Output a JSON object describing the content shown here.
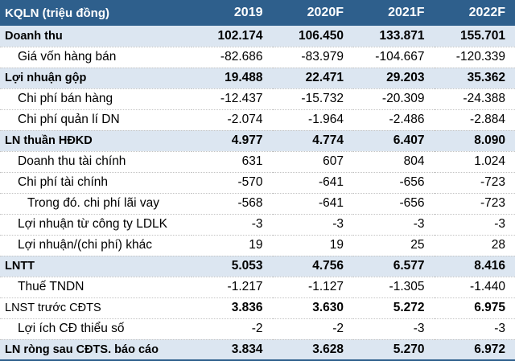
{
  "table": {
    "header": {
      "label": "KQLN (triệu đồng)",
      "years": [
        "2019",
        "2020F",
        "2021F",
        "2022F"
      ]
    },
    "rows": [
      {
        "label": "Doanh thu",
        "values": [
          "102.174",
          "106.450",
          "133.871",
          "155.701"
        ]
      },
      {
        "label": "Giá vốn hàng bán",
        "values": [
          "-82.686",
          "-83.979",
          "-104.667",
          "-120.339"
        ]
      },
      {
        "label": "Lợi nhuận gộp",
        "values": [
          "19.488",
          "22.471",
          "29.203",
          "35.362"
        ]
      },
      {
        "label": "Chi phí bán hàng",
        "values": [
          "-12.437",
          "-15.732",
          "-20.309",
          "-24.388"
        ]
      },
      {
        "label": "Chi phí quản lí DN",
        "values": [
          "-2.074",
          "-1.964",
          "-2.486",
          "-2.884"
        ]
      },
      {
        "label": "LN thuần HĐKD",
        "values": [
          "4.977",
          "4.774",
          "6.407",
          "8.090"
        ]
      },
      {
        "label": "Doanh thu tài chính",
        "values": [
          "631",
          "607",
          "804",
          "1.024"
        ]
      },
      {
        "label": "Chi phí tài chính",
        "values": [
          "-570",
          "-641",
          "-656",
          "-723"
        ]
      },
      {
        "label": "Trong đó. chi phí lãi vay",
        "values": [
          "-568",
          "-641",
          "-656",
          "-723"
        ]
      },
      {
        "label": "Lợi nhuận từ công ty LDLK",
        "values": [
          "-3",
          "-3",
          "-3",
          "-3"
        ]
      },
      {
        "label": "Lợi nhuận/(chi phí) khác",
        "values": [
          "19",
          "19",
          "25",
          "28"
        ]
      },
      {
        "label": "LNTT",
        "values": [
          "5.053",
          "4.756",
          "6.577",
          "8.416"
        ]
      },
      {
        "label": "Thuế TNDN",
        "values": [
          "-1.217",
          "-1.127",
          "-1.305",
          "-1.440"
        ]
      },
      {
        "label": "LNST trước CĐTS",
        "values": [
          "3.836",
          "3.630",
          "5.272",
          "6.975"
        ]
      },
      {
        "label": "Lợi ích CĐ thiểu số",
        "values": [
          "-2",
          "-2",
          "-3",
          "-3"
        ]
      },
      {
        "label": "LN ròng sau CĐTS. báo cáo",
        "values": [
          "3.834",
          "3.628",
          "5.270",
          "6.972"
        ]
      }
    ]
  },
  "colors": {
    "header_bg": "#2e5f8c",
    "header_text": "#ffffff",
    "shaded_row_bg": "#dce6f1"
  }
}
